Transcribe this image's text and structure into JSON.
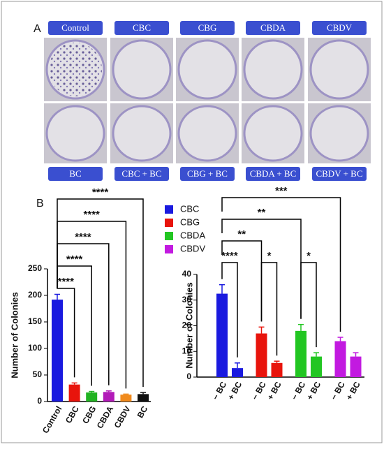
{
  "panel_a": {
    "label": "A",
    "top_labels": [
      "Control",
      "CBC",
      "CBG",
      "CBDA",
      "CBDV"
    ],
    "bottom_labels": [
      "BC",
      "CBC + BC",
      "CBG + BC",
      "CBDA + BC",
      "CBDV + BC"
    ]
  },
  "panel_b_label": "B",
  "chart_data": [
    {
      "type": "bar",
      "ylabel": "Number of Colonies",
      "categories": [
        "Control",
        "CBC",
        "CBG",
        "CBDA",
        "CBDV",
        "BC"
      ],
      "values": [
        192,
        32,
        17,
        18,
        13,
        14
      ],
      "errors": [
        10,
        3,
        2,
        2,
        1,
        3
      ],
      "colors": [
        "#1a1adf",
        "#e8140c",
        "#22b322",
        "#b21ab8",
        "#f08a1c",
        "#111111"
      ],
      "ylim": [
        0,
        250
      ],
      "yticks": [
        0,
        50,
        100,
        150,
        200,
        250
      ],
      "annotations": [
        {
          "text": "****",
          "from": 0,
          "to": 1
        },
        {
          "text": "****",
          "from": 0,
          "to": 2
        },
        {
          "text": "****",
          "from": 0,
          "to": 3
        },
        {
          "text": "****",
          "from": 0,
          "to": 4
        },
        {
          "text": "****",
          "from": 0,
          "to": 5
        }
      ]
    },
    {
      "type": "grouped-bar",
      "ylabel": "Number of Colonies",
      "x_labels": [
        "− BC",
        "+ BC"
      ],
      "series": [
        {
          "name": "CBC",
          "color": "#1a1adf",
          "values": [
            32.5,
            3.5
          ],
          "errors": [
            3.5,
            2
          ]
        },
        {
          "name": "CBG",
          "color": "#e8140c",
          "values": [
            17,
            5.5
          ],
          "errors": [
            2.5,
            0.7
          ]
        },
        {
          "name": "CBDA",
          "color": "#22c622",
          "values": [
            18,
            8
          ],
          "errors": [
            2.5,
            1.5
          ]
        },
        {
          "name": "CBDV",
          "color": "#c21ae0",
          "values": [
            14,
            8
          ],
          "errors": [
            1.5,
            1.5
          ]
        }
      ],
      "ylim": [
        0,
        40
      ],
      "yticks": [
        0,
        10,
        20,
        30,
        40
      ],
      "annotations": [
        {
          "text": "****",
          "from": [
            0,
            0
          ],
          "to": [
            0,
            1
          ]
        },
        {
          "text": "*",
          "from": [
            1,
            0
          ],
          "to": [
            1,
            1
          ]
        },
        {
          "text": "*",
          "from": [
            2,
            0
          ],
          "to": [
            2,
            1
          ]
        },
        {
          "text": "**",
          "from": [
            0,
            0
          ],
          "to": [
            1,
            0
          ]
        },
        {
          "text": "**",
          "from": [
            0,
            0
          ],
          "to": [
            2,
            0
          ]
        },
        {
          "text": "***",
          "from": [
            0,
            0
          ],
          "to": [
            3,
            0
          ]
        }
      ]
    }
  ]
}
